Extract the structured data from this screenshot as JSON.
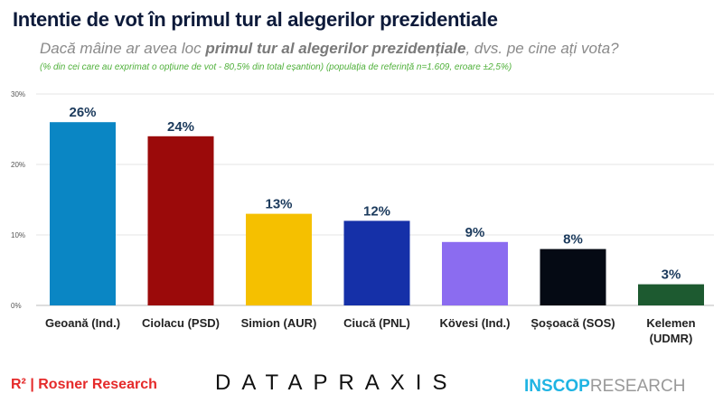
{
  "title": "Intentie de vot în primul tur al alegerilor prezidentiale",
  "subtitle": {
    "pre": "Dacă mâine ar avea loc ",
    "bold": "primul tur al alegerilor prezidențiale",
    "post": ", dvs. pe cine ați vota?"
  },
  "note": "(% din cei care au exprimat o opțiune de vot  - 80,5% din total eșantion) (populația de referință n=1.609, eroare ±2,5%)",
  "logos": {
    "rosner": "R² | Rosner Research",
    "datapraxis": "DATAPRAXIS",
    "inscop_a": "INSCOP",
    "inscop_b": "RESEARCH"
  },
  "chart_data": {
    "type": "bar",
    "categories": [
      "Geoană (Ind.)",
      "Ciolacu (PSD)",
      "Simion (AUR)",
      "Ciucă (PNL)",
      "Kövesi (Ind.)",
      "Șoșoacă (SOS)",
      "Kelemen (UDMR)"
    ],
    "values": [
      26,
      24,
      13,
      12,
      9,
      8,
      3
    ],
    "labels": [
      "26%",
      "24%",
      "13%",
      "12%",
      "9%",
      "8%",
      "3%"
    ],
    "colors": [
      "#0a86c4",
      "#9b0a0a",
      "#f5c000",
      "#1530a8",
      "#8b6cf0",
      "#050a14",
      "#1d5a30"
    ],
    "yticks": [
      "0%",
      "10%",
      "20%",
      "30%"
    ],
    "ylim": [
      0,
      30
    ],
    "grid": true
  }
}
